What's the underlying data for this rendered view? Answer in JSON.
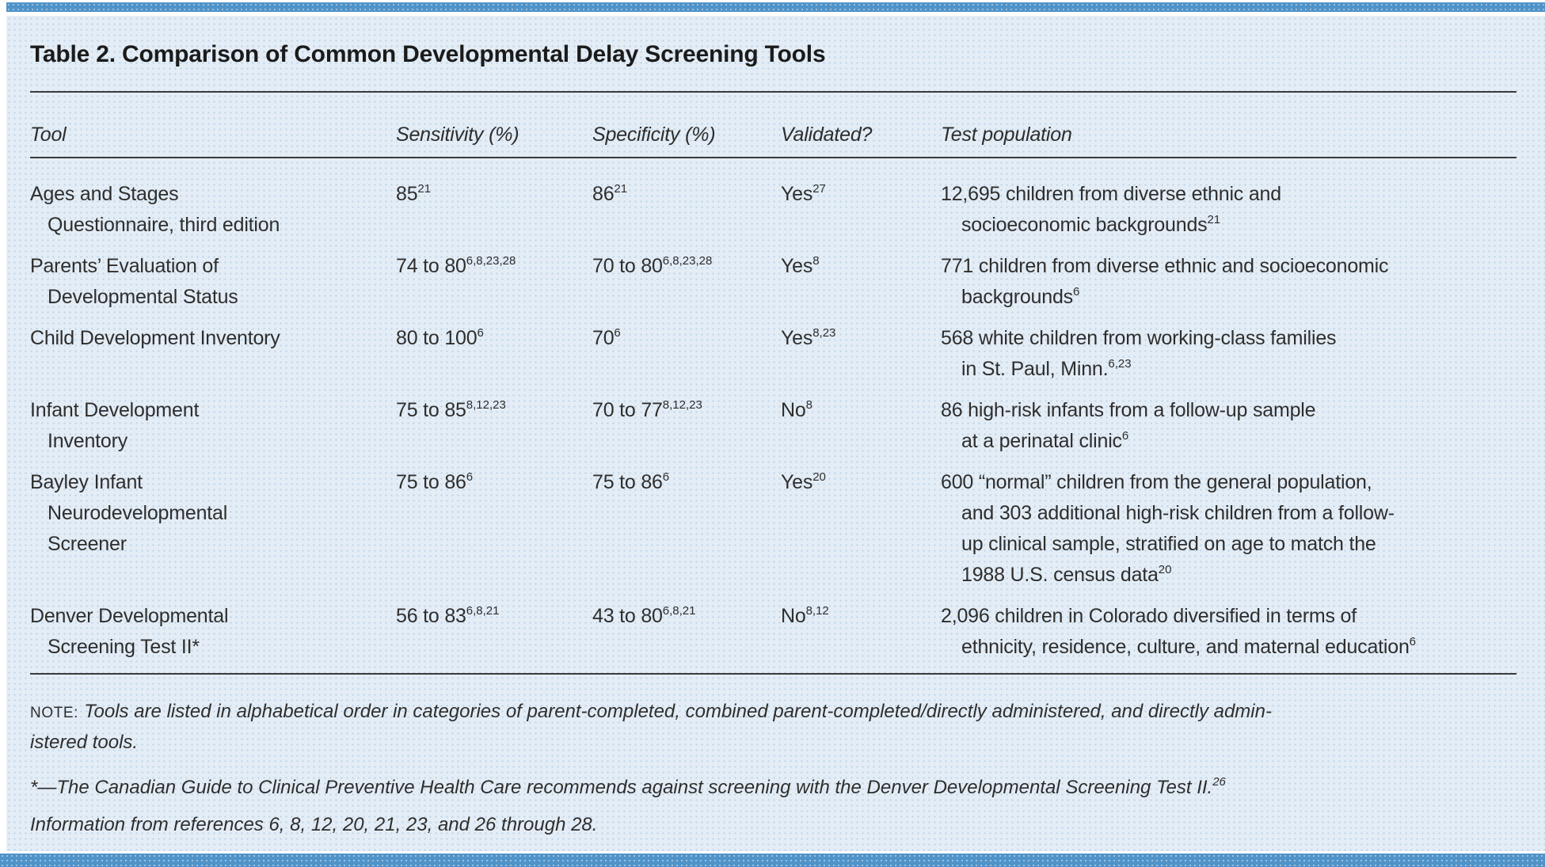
{
  "title": "Table 2. Comparison of Common Developmental Delay Screening Tools",
  "columns": {
    "tool": "Tool",
    "sensitivity": "Sensitivity (%)",
    "specificity": "Specificity (%)",
    "validated": "Validated?",
    "population": "Test population"
  },
  "rows": [
    {
      "tool": [
        "Ages and Stages",
        "Questionnaire, third edition"
      ],
      "sensitivity": {
        "value": "85",
        "refs": "21"
      },
      "specificity": {
        "value": "86",
        "refs": "21"
      },
      "validated": {
        "value": "Yes",
        "refs": "27"
      },
      "population": [
        {
          "text": "12,695 children from diverse ethnic and",
          "refs": ""
        },
        {
          "text": "socioeconomic backgrounds",
          "refs": "21"
        }
      ]
    },
    {
      "tool": [
        "Parents’ Evaluation of",
        "Developmental Status"
      ],
      "sensitivity": {
        "value": "74 to 80",
        "refs": "6,8,23,28"
      },
      "specificity": {
        "value": "70 to 80",
        "refs": "6,8,23,28"
      },
      "validated": {
        "value": "Yes",
        "refs": "8"
      },
      "population": [
        {
          "text": "771 children from diverse ethnic and socioeconomic",
          "refs": ""
        },
        {
          "text": "backgrounds",
          "refs": "6"
        }
      ]
    },
    {
      "tool": [
        "Child Development Inventory"
      ],
      "sensitivity": {
        "value": "80 to 100",
        "refs": "6"
      },
      "specificity": {
        "value": "70",
        "refs": "6"
      },
      "validated": {
        "value": "Yes",
        "refs": "8,23"
      },
      "population": [
        {
          "text": "568 white children from working-class families",
          "refs": ""
        },
        {
          "text": "in St. Paul, Minn.",
          "refs": "6,23"
        }
      ]
    },
    {
      "tool": [
        "Infant Development",
        "Inventory"
      ],
      "sensitivity": {
        "value": "75 to 85",
        "refs": "8,12,23"
      },
      "specificity": {
        "value": "70 to 77",
        "refs": "8,12,23"
      },
      "validated": {
        "value": "No",
        "refs": "8"
      },
      "population": [
        {
          "text": "86 high-risk infants from a follow-up sample",
          "refs": ""
        },
        {
          "text": "at a perinatal clinic",
          "refs": "6"
        }
      ]
    },
    {
      "tool": [
        "Bayley Infant",
        "Neurodevelopmental",
        "Screener"
      ],
      "sensitivity": {
        "value": "75 to 86",
        "refs": "6"
      },
      "specificity": {
        "value": "75 to 86",
        "refs": "6"
      },
      "validated": {
        "value": "Yes",
        "refs": "20"
      },
      "population": [
        {
          "text": "600 “normal” children from the general population,",
          "refs": ""
        },
        {
          "text": "and 303 additional high-risk children from a follow-",
          "refs": ""
        },
        {
          "text": "up clinical sample, stratified on age to match the",
          "refs": ""
        },
        {
          "text": "1988 U.S. census data",
          "refs": "20"
        }
      ]
    },
    {
      "tool": [
        "Denver Developmental",
        "Screening Test II*"
      ],
      "sensitivity": {
        "value": "56 to 83",
        "refs": "6,8,21"
      },
      "specificity": {
        "value": "43 to 80",
        "refs": "6,8,21"
      },
      "validated": {
        "value": "No",
        "refs": "8,12"
      },
      "population": [
        {
          "text": "2,096 children in Colorado diversified in terms of",
          "refs": ""
        },
        {
          "text": "ethnicity, residence, culture, and maternal education",
          "refs": "6"
        }
      ]
    }
  ],
  "footer": {
    "note_label": "NOTE:",
    "note_line1": "Tools are listed in alphabetical order in categories of parent-completed, combined parent-completed/directly administered, and directly admin-",
    "note_line2": "istered tools.",
    "asterisk_note": {
      "text": "*—The Canadian Guide to Clinical Preventive Health Care recommends against screening with the Denver Developmental Screening Test II.",
      "refs": "26"
    },
    "source_line": "Information from references 6, 8, 12, 20, 21, 23, and 26 through 28."
  },
  "colors": {
    "accent_blue": "#5093c8",
    "panel_background": "#e4edf5",
    "text": "#2e2e2e",
    "rule": "#3b3b3b"
  }
}
